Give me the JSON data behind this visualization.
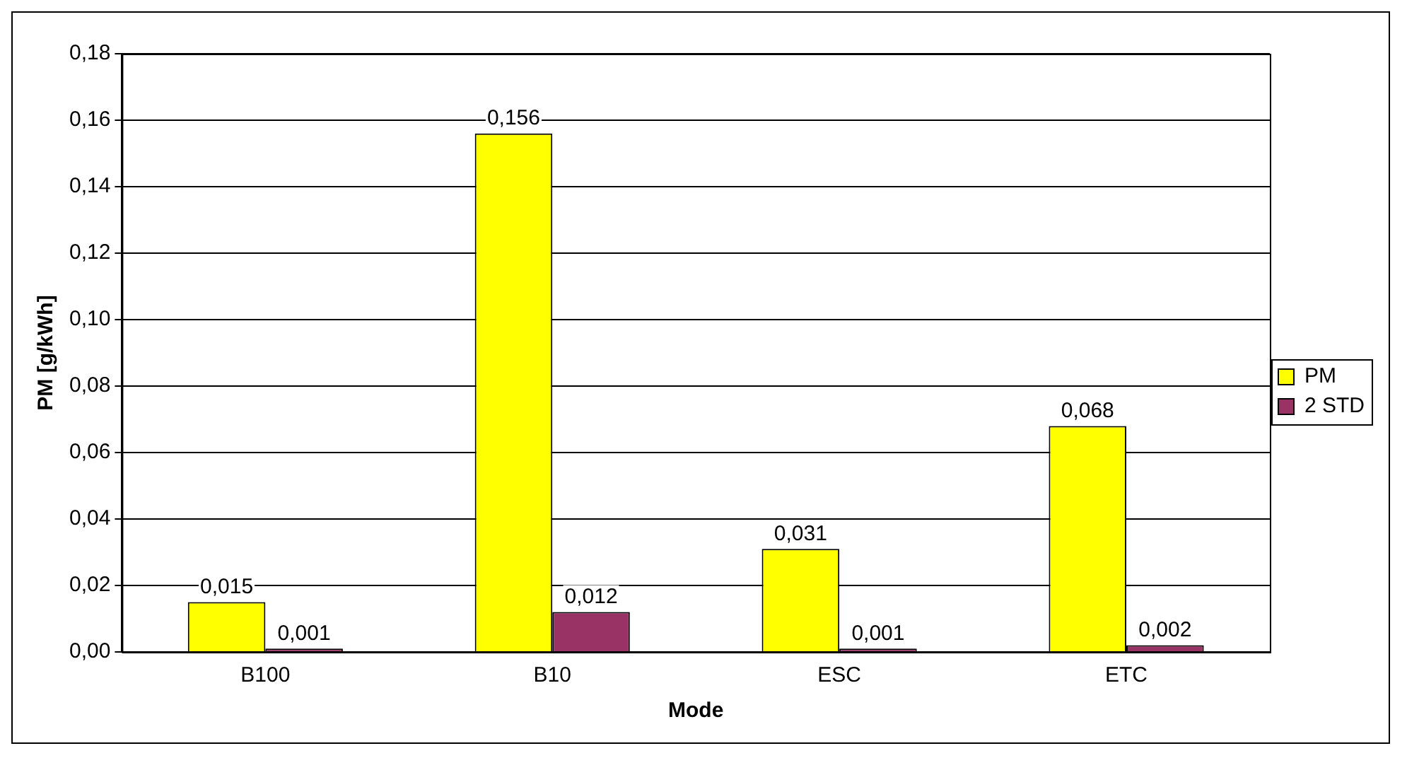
{
  "chart_data": {
    "type": "bar",
    "xlabel": "Mode",
    "ylabel": "PM [g/kWh]",
    "categories": [
      "B100",
      "B10",
      "ESC",
      "ETC"
    ],
    "series": [
      {
        "name": "PM",
        "color": "#ffff00",
        "values": [
          0.015,
          0.156,
          0.031,
          0.068
        ],
        "value_labels": [
          "0,015",
          "0,156",
          "0,031",
          "0,068"
        ]
      },
      {
        "name": "2 STD",
        "color": "#993366",
        "values": [
          0.001,
          0.012,
          0.001,
          0.002
        ],
        "value_labels": [
          "0,001",
          "0,012",
          "0,001",
          "0,002"
        ]
      }
    ],
    "ylim": [
      0,
      0.18
    ],
    "yticks": [
      {
        "value": 0,
        "label": "0,00"
      },
      {
        "value": 0.02,
        "label": "0,02"
      },
      {
        "value": 0.04,
        "label": "0,04"
      },
      {
        "value": 0.06,
        "label": "0,06"
      },
      {
        "value": 0.08,
        "label": "0,08"
      },
      {
        "value": 0.1,
        "label": "0,10"
      },
      {
        "value": 0.12,
        "label": "0,12"
      },
      {
        "value": 0.14,
        "label": "0,14"
      },
      {
        "value": 0.16,
        "label": "0,16"
      },
      {
        "value": 0.18,
        "label": "0,18"
      }
    ],
    "grid": "y",
    "legend": "right"
  }
}
